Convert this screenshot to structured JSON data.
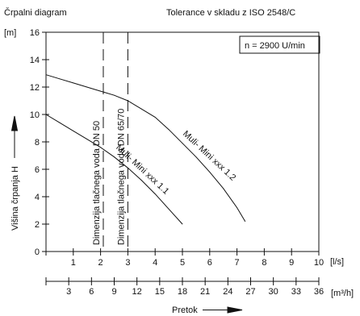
{
  "chart_data": {
    "type": "line",
    "title": "Črpalni diagram",
    "subtitle": "Tolerance v skladu z ISO 2548/C",
    "speed_note": "n = 2900 U/min",
    "ylabel": "Višina črpanja H",
    "yunit": "[m]",
    "xunit": "[l/s]",
    "x2unit": "[m³/h]",
    "xlabel": "Pretok",
    "ylim": [
      0,
      16
    ],
    "xlim": [
      0,
      10
    ],
    "x2lim": [
      0,
      36
    ],
    "yticks": [
      "0",
      "2",
      "4",
      "6",
      "8",
      "10",
      "12",
      "14",
      "16"
    ],
    "xticks": [
      "1",
      "2",
      "3",
      "4",
      "5",
      "6",
      "7",
      "8",
      "9",
      "10"
    ],
    "x2ticks": [
      "3",
      "6",
      "9",
      "12",
      "15",
      "18",
      "21",
      "24",
      "27",
      "30",
      "33",
      "36"
    ],
    "grid": false,
    "series": [
      {
        "name": "Muli- Mini xxx 1.1",
        "x": [
          0,
          0.5,
          1.0,
          1.5,
          2.0,
          2.5,
          3.0,
          3.5,
          4.0,
          4.5,
          5.0
        ],
        "y": [
          10.0,
          9.4,
          8.8,
          8.2,
          7.6,
          6.9,
          6.1,
          5.2,
          4.2,
          3.1,
          2.0
        ]
      },
      {
        "name": "Muli- Mini xxx 1.2",
        "x": [
          0,
          0.5,
          1.0,
          1.5,
          2.0,
          2.5,
          3.0,
          3.5,
          4.0,
          4.5,
          5.0,
          5.5,
          6.0,
          6.5,
          7.0,
          7.3
        ],
        "y": [
          12.9,
          12.6,
          12.3,
          12.0,
          11.7,
          11.4,
          11.0,
          10.4,
          9.8,
          8.9,
          7.9,
          6.9,
          5.8,
          4.6,
          3.2,
          2.2
        ]
      }
    ],
    "reference_lines": [
      {
        "label": "Dimenzija tlačnega voda DN 50",
        "x": 2.1
      },
      {
        "label": "Dimenzija tlačnega voda DN 65/70",
        "x": 3.0
      }
    ]
  }
}
